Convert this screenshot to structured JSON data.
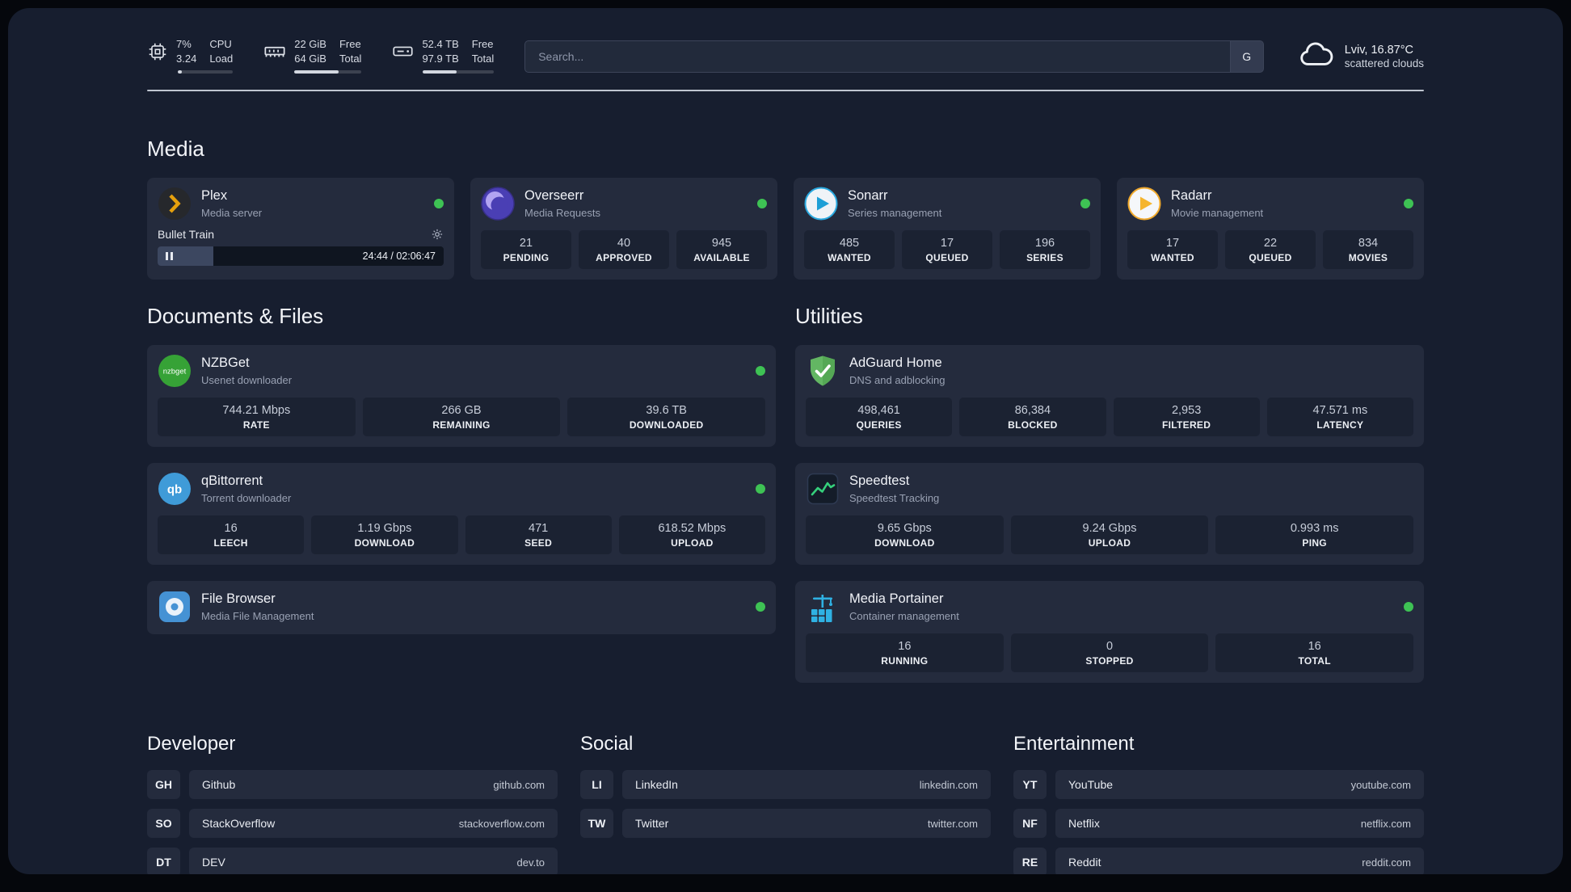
{
  "topbar": {
    "cpu": {
      "value_top": "7%",
      "value_bottom": "3.24",
      "label_top": "CPU",
      "label_bottom": "Load",
      "progress_pct": 7
    },
    "ram": {
      "value_top": "22 GiB",
      "value_bottom": "64 GiB",
      "label_top": "Free",
      "label_bottom": "Total",
      "progress_pct": 66
    },
    "disk": {
      "value_top": "52.4 TB",
      "value_bottom": "97.9 TB",
      "label_top": "Free",
      "label_bottom": "Total",
      "progress_pct": 47
    },
    "search": {
      "placeholder": "Search...",
      "shortcut": "G"
    },
    "weather": {
      "location": "Lviv, 16.87°C",
      "condition": "scattered clouds"
    }
  },
  "media": {
    "title": "Media",
    "plex": {
      "name": "Plex",
      "subtitle": "Media server",
      "online": true,
      "now_playing": "Bullet Train",
      "time": "24:44 / 02:06:47",
      "progress_pct": 19.5
    },
    "overseerr": {
      "name": "Overseerr",
      "subtitle": "Media Requests",
      "online": true,
      "stats": [
        {
          "value": "21",
          "label": "PENDING"
        },
        {
          "value": "40",
          "label": "APPROVED"
        },
        {
          "value": "945",
          "label": "AVAILABLE"
        }
      ]
    },
    "sonarr": {
      "name": "Sonarr",
      "subtitle": "Series management",
      "online": true,
      "stats": [
        {
          "value": "485",
          "label": "WANTED"
        },
        {
          "value": "17",
          "label": "QUEUED"
        },
        {
          "value": "196",
          "label": "SERIES"
        }
      ]
    },
    "radarr": {
      "name": "Radarr",
      "subtitle": "Movie management",
      "online": true,
      "stats": [
        {
          "value": "17",
          "label": "WANTED"
        },
        {
          "value": "22",
          "label": "QUEUED"
        },
        {
          "value": "834",
          "label": "MOVIES"
        }
      ]
    }
  },
  "documents": {
    "title": "Documents & Files",
    "nzbget": {
      "name": "NZBGet",
      "subtitle": "Usenet downloader",
      "online": true,
      "icon_text": "nzbget",
      "stats": [
        {
          "value": "744.21 Mbps",
          "label": "RATE"
        },
        {
          "value": "266 GB",
          "label": "REMAINING"
        },
        {
          "value": "39.6 TB",
          "label": "DOWNLOADED"
        }
      ]
    },
    "qbittorrent": {
      "name": "qBittorrent",
      "subtitle": "Torrent downloader",
      "online": true,
      "icon_text": "qb",
      "stats": [
        {
          "value": "16",
          "label": "LEECH"
        },
        {
          "value": "1.19 Gbps",
          "label": "DOWNLOAD"
        },
        {
          "value": "471",
          "label": "SEED"
        },
        {
          "value": "618.52 Mbps",
          "label": "UPLOAD"
        }
      ]
    },
    "filebrowser": {
      "name": "File Browser",
      "subtitle": "Media File Management",
      "online": true
    }
  },
  "utilities": {
    "title": "Utilities",
    "adguard": {
      "name": "AdGuard Home",
      "subtitle": "DNS and adblocking",
      "stats": [
        {
          "value": "498,461",
          "label": "QUERIES"
        },
        {
          "value": "86,384",
          "label": "BLOCKED"
        },
        {
          "value": "2,953",
          "label": "FILTERED"
        },
        {
          "value": "47.571 ms",
          "label": "LATENCY"
        }
      ]
    },
    "speedtest": {
      "name": "Speedtest",
      "subtitle": "Speedtest Tracking",
      "stats": [
        {
          "value": "9.65 Gbps",
          "label": "DOWNLOAD"
        },
        {
          "value": "9.24 Gbps",
          "label": "UPLOAD"
        },
        {
          "value": "0.993 ms",
          "label": "PING"
        }
      ]
    },
    "portainer": {
      "name": "Media Portainer",
      "subtitle": "Container management",
      "online": true,
      "stats": [
        {
          "value": "16",
          "label": "RUNNING"
        },
        {
          "value": "0",
          "label": "STOPPED"
        },
        {
          "value": "16",
          "label": "TOTAL"
        }
      ]
    }
  },
  "bookmarks": [
    {
      "title": "Developer",
      "links": [
        {
          "abbr": "GH",
          "name": "Github",
          "url": "github.com"
        },
        {
          "abbr": "SO",
          "name": "StackOverflow",
          "url": "stackoverflow.com"
        },
        {
          "abbr": "DT",
          "name": "DEV",
          "url": "dev.to"
        }
      ]
    },
    {
      "title": "Social",
      "links": [
        {
          "abbr": "LI",
          "name": "LinkedIn",
          "url": "linkedin.com"
        },
        {
          "abbr": "TW",
          "name": "Twitter",
          "url": "twitter.com"
        }
      ]
    },
    {
      "title": "Entertainment",
      "links": [
        {
          "abbr": "YT",
          "name": "YouTube",
          "url": "youtube.com"
        },
        {
          "abbr": "NF",
          "name": "Netflix",
          "url": "netflix.com"
        },
        {
          "abbr": "RE",
          "name": "Reddit",
          "url": "reddit.com"
        }
      ]
    }
  ],
  "colors": {
    "status_online": "#3ec254",
    "plex_accent": "#e5a00d",
    "speedtest_graph": "#35d07c",
    "adguard_green": "#63b663",
    "portainer_blue": "#2fb1e3"
  },
  "icons": {
    "cpu-icon": "chip outline",
    "ram-icon": "memory module outline",
    "disk-icon": "hard drive outline",
    "cloud-icon": "cloud outline",
    "gear-icon": "settings gear",
    "pause-icon": "pause bars",
    "status-dot": "green online dot",
    "plex-icon": "dark circle with amber chevron",
    "overseerr-icon": "purple swirl circle",
    "sonarr-icon": "white circle with blue play triangle",
    "radarr-icon": "white circle with amber play triangle",
    "nzbget-icon": "green circle wordmark",
    "qbittorrent-icon": "blue circle wordmark",
    "filebrowser-icon": "blue rounded square with disc",
    "adguard-icon": "green shield with check",
    "speedtest-icon": "dark tile with green graph",
    "portainer-icon": "blue crane with containers"
  }
}
